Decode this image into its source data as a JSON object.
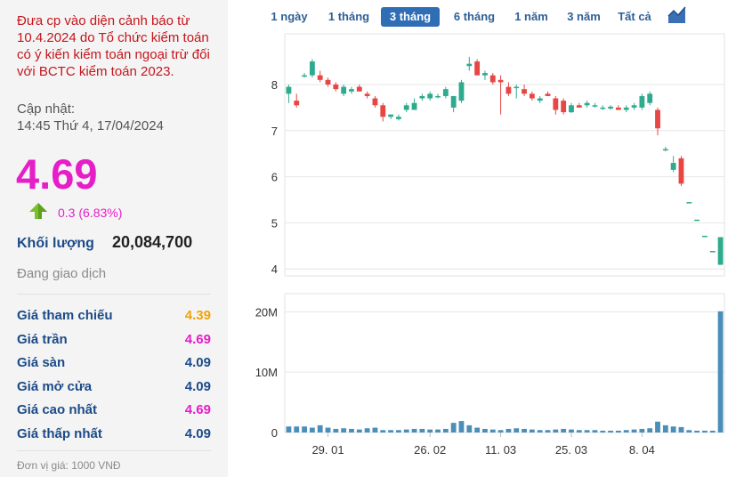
{
  "info": {
    "warning": "Đưa cp vào diện cảnh báo từ 10.4.2024 do Tổ chức kiểm toán có ý kiến kiểm toán ngoại trừ đối với BCTC kiểm toán 2023.",
    "updated_label": "Cập nhật:",
    "updated_time": "14:45 Thứ 4, 17/04/2024",
    "price": "4.69",
    "change": "0.3 (6.83%)",
    "volume_label": "Khối lượng",
    "volume": "20,084,700",
    "status": "Đang giao dịch",
    "unit": "Đơn vị giá: 1000 VNĐ",
    "colors": {
      "up": "#2eaa8e",
      "down": "#e84545",
      "ceiling": "#e61ec8",
      "reference": "#f0a30a"
    }
  },
  "stats": [
    {
      "label": "Giá tham chiếu",
      "value": "4.39",
      "color": "#f0a30a"
    },
    {
      "label": "Giá trần",
      "value": "4.69",
      "color": "#e61ec8"
    },
    {
      "label": "Giá sàn",
      "value": "4.09",
      "color": "#1c4b88"
    },
    {
      "label": "Giá mở cửa",
      "value": "4.09",
      "color": "#1c4b88"
    },
    {
      "label": "Giá cao nhất",
      "value": "4.69",
      "color": "#e61ec8"
    },
    {
      "label": "Giá thấp nhất",
      "value": "4.09",
      "color": "#1c4b88"
    }
  ],
  "tabs": [
    {
      "label": "1 ngày",
      "active": false
    },
    {
      "label": "1 tháng",
      "active": false
    },
    {
      "label": "3 tháng",
      "active": true
    },
    {
      "label": "6 tháng",
      "active": false
    },
    {
      "label": "1 năm",
      "active": false
    },
    {
      "label": "3 năm",
      "active": false
    },
    {
      "label": "Tất cả",
      "active": false
    }
  ],
  "chart_icon": "area-chart-icon",
  "chart_data": {
    "type": "candlestick",
    "price_axis": {
      "ticks": [
        4,
        5,
        6,
        7,
        8
      ],
      "range": [
        3.85,
        9.1
      ],
      "grid": true
    },
    "volume_axis": {
      "ticks": [
        0,
        10,
        20
      ],
      "tick_labels": [
        "0",
        "10M",
        "20M"
      ],
      "range": [
        0,
        23
      ],
      "unit": "M"
    },
    "x_ticks": [
      {
        "label": "29. 01",
        "index": 5
      },
      {
        "label": "26. 02",
        "index": 18
      },
      {
        "label": "11. 03",
        "index": 27
      },
      {
        "label": "25. 03",
        "index": 36
      },
      {
        "label": "8. 04",
        "index": 45
      }
    ],
    "candles": [
      {
        "o": 7.8,
        "h": 8.0,
        "l": 7.6,
        "c": 7.95
      },
      {
        "o": 7.65,
        "h": 7.8,
        "l": 7.5,
        "c": 7.55
      },
      {
        "o": 8.2,
        "h": 8.25,
        "l": 8.15,
        "c": 8.2
      },
      {
        "o": 8.2,
        "h": 8.55,
        "l": 8.15,
        "c": 8.5
      },
      {
        "o": 8.2,
        "h": 8.3,
        "l": 8.05,
        "c": 8.1
      },
      {
        "o": 8.1,
        "h": 8.15,
        "l": 7.95,
        "c": 8.0
      },
      {
        "o": 8.0,
        "h": 8.05,
        "l": 7.85,
        "c": 7.9
      },
      {
        "o": 7.8,
        "h": 8.0,
        "l": 7.75,
        "c": 7.95
      },
      {
        "o": 7.85,
        "h": 7.95,
        "l": 7.8,
        "c": 7.9
      },
      {
        "o": 7.95,
        "h": 8.0,
        "l": 7.85,
        "c": 7.85
      },
      {
        "o": 7.8,
        "h": 7.85,
        "l": 7.7,
        "c": 7.75
      },
      {
        "o": 7.7,
        "h": 7.75,
        "l": 7.5,
        "c": 7.55
      },
      {
        "o": 7.55,
        "h": 7.6,
        "l": 7.2,
        "c": 7.3
      },
      {
        "o": 7.3,
        "h": 7.35,
        "l": 7.25,
        "c": 7.35
      },
      {
        "o": 7.25,
        "h": 7.35,
        "l": 7.22,
        "c": 7.3
      },
      {
        "o": 7.45,
        "h": 7.6,
        "l": 7.4,
        "c": 7.55
      },
      {
        "o": 7.45,
        "h": 7.7,
        "l": 7.45,
        "c": 7.6
      },
      {
        "o": 7.7,
        "h": 7.8,
        "l": 7.65,
        "c": 7.75
      },
      {
        "o": 7.7,
        "h": 7.85,
        "l": 7.65,
        "c": 7.8
      },
      {
        "o": 7.75,
        "h": 7.8,
        "l": 7.7,
        "c": 7.75
      },
      {
        "o": 7.75,
        "h": 7.95,
        "l": 7.7,
        "c": 7.9
      },
      {
        "o": 7.5,
        "h": 7.75,
        "l": 7.4,
        "c": 7.75
      },
      {
        "o": 7.65,
        "h": 8.1,
        "l": 7.6,
        "c": 8.05
      },
      {
        "o": 8.4,
        "h": 8.6,
        "l": 8.3,
        "c": 8.45
      },
      {
        "o": 8.5,
        "h": 8.55,
        "l": 8.2,
        "c": 8.2
      },
      {
        "o": 8.2,
        "h": 8.3,
        "l": 8.1,
        "c": 8.25
      },
      {
        "o": 8.2,
        "h": 8.25,
        "l": 8.0,
        "c": 8.05
      },
      {
        "o": 8.1,
        "h": 8.2,
        "l": 7.35,
        "c": 8.05
      },
      {
        "o": 7.95,
        "h": 8.05,
        "l": 7.75,
        "c": 7.8
      },
      {
        "o": 7.95,
        "h": 8.0,
        "l": 7.7,
        "c": 7.95
      },
      {
        "o": 7.9,
        "h": 8.0,
        "l": 7.75,
        "c": 7.8
      },
      {
        "o": 7.8,
        "h": 7.85,
        "l": 7.65,
        "c": 7.7
      },
      {
        "o": 7.65,
        "h": 7.75,
        "l": 7.6,
        "c": 7.7
      },
      {
        "o": 7.8,
        "h": 7.85,
        "l": 7.75,
        "c": 7.75
      },
      {
        "o": 7.7,
        "h": 7.75,
        "l": 7.35,
        "c": 7.45
      },
      {
        "o": 7.65,
        "h": 7.7,
        "l": 7.35,
        "c": 7.4
      },
      {
        "o": 7.4,
        "h": 7.6,
        "l": 7.38,
        "c": 7.55
      },
      {
        "o": 7.55,
        "h": 7.6,
        "l": 7.5,
        "c": 7.5
      },
      {
        "o": 7.55,
        "h": 7.65,
        "l": 7.5,
        "c": 7.6
      },
      {
        "o": 7.55,
        "h": 7.6,
        "l": 7.5,
        "c": 7.55
      },
      {
        "o": 7.5,
        "h": 7.55,
        "l": 7.45,
        "c": 7.5
      },
      {
        "o": 7.48,
        "h": 7.55,
        "l": 7.45,
        "c": 7.52
      },
      {
        "o": 7.5,
        "h": 7.55,
        "l": 7.45,
        "c": 7.45
      },
      {
        "o": 7.45,
        "h": 7.55,
        "l": 7.4,
        "c": 7.5
      },
      {
        "o": 7.5,
        "h": 7.6,
        "l": 7.45,
        "c": 7.55
      },
      {
        "o": 7.5,
        "h": 7.8,
        "l": 7.45,
        "c": 7.75
      },
      {
        "o": 7.6,
        "h": 7.85,
        "l": 7.55,
        "c": 7.8
      },
      {
        "o": 7.45,
        "h": 7.5,
        "l": 6.9,
        "c": 7.05
      },
      {
        "o": 6.6,
        "h": 6.65,
        "l": 6.55,
        "c": 6.6
      },
      {
        "o": 6.15,
        "h": 6.45,
        "l": 6.1,
        "c": 6.3
      },
      {
        "o": 6.4,
        "h": 6.45,
        "l": 5.8,
        "c": 5.85
      },
      {
        "o": 5.45,
        "h": 5.45,
        "l": 5.45,
        "c": 5.45
      },
      {
        "o": 5.07,
        "h": 5.07,
        "l": 5.07,
        "c": 5.07
      },
      {
        "o": 4.72,
        "h": 4.72,
        "l": 4.72,
        "c": 4.72
      },
      {
        "o": 4.39,
        "h": 4.39,
        "l": 4.39,
        "c": 4.39
      },
      {
        "o": 4.09,
        "h": 4.69,
        "l": 4.09,
        "c": 4.69
      }
    ],
    "volumes": [
      1.0,
      1.0,
      1.0,
      0.8,
      1.2,
      0.8,
      0.6,
      0.7,
      0.6,
      0.5,
      0.7,
      0.8,
      0.4,
      0.4,
      0.4,
      0.5,
      0.6,
      0.6,
      0.5,
      0.5,
      0.6,
      1.6,
      1.9,
      1.2,
      0.8,
      0.6,
      0.5,
      0.4,
      0.6,
      0.7,
      0.6,
      0.5,
      0.4,
      0.4,
      0.5,
      0.6,
      0.5,
      0.4,
      0.4,
      0.4,
      0.3,
      0.3,
      0.3,
      0.4,
      0.5,
      0.6,
      0.7,
      1.8,
      1.2,
      1.0,
      0.9,
      0.4,
      0.3,
      0.3,
      0.3,
      20.08
    ]
  }
}
